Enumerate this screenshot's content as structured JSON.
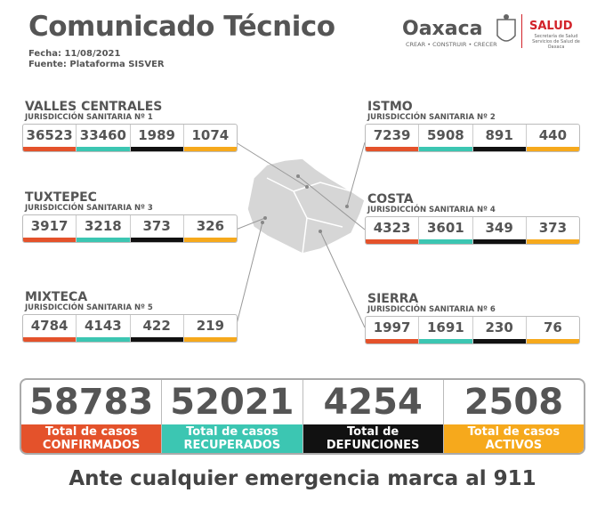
{
  "header": {
    "title": "Comunicado Técnico",
    "date": "Fecha: 11/08/2021",
    "source": "Fuente: Plataforma SISVER"
  },
  "logos": {
    "state": "Oaxaca",
    "tagline": "CREAR • CONSTRUIR • CRECER",
    "health": "SALUD",
    "health_sub": [
      "Secretaría de Salud",
      "Servicios de Salud de Oaxaca"
    ]
  },
  "regions": [
    {
      "name": "VALLES CENTRALES",
      "jurisdiction": "JURISDICCIÓN SANITARIA Nº 1",
      "values": [
        36523,
        33460,
        1989,
        1074
      ]
    },
    {
      "name": "ISTMO",
      "jurisdiction": "JURISDICCIÓN SANITARIA Nº 2",
      "values": [
        7239,
        5908,
        891,
        440
      ]
    },
    {
      "name": "TUXTEPEC",
      "jurisdiction": "JURISDICCIÓN SANITARIA Nº 3",
      "values": [
        3917,
        3218,
        373,
        326
      ]
    },
    {
      "name": "COSTA",
      "jurisdiction": "JURISDICCIÓN SANITARIA Nº 4",
      "values": [
        4323,
        3601,
        349,
        373
      ]
    },
    {
      "name": "MIXTECA",
      "jurisdiction": "JURISDICCIÓN SANITARIA Nº 5",
      "values": [
        4784,
        4143,
        422,
        219
      ]
    },
    {
      "name": "SIERRA",
      "jurisdiction": "JURISDICCIÓN SANITARIA Nº 6",
      "values": [
        1997,
        1691,
        230,
        76
      ]
    }
  ],
  "totals": [
    {
      "value": 58783,
      "label": [
        "Total de casos",
        "CONFIRMADOS"
      ]
    },
    {
      "value": 52021,
      "label": [
        "Total de casos",
        "RECUPERADOS"
      ]
    },
    {
      "value": 4254,
      "label": [
        "Total de",
        "DEFUNCIONES"
      ]
    },
    {
      "value": 2508,
      "label": [
        "Total de casos",
        "ACTIVOS"
      ]
    }
  ],
  "footer": "Ante cualquier emergencia marca al 911"
}
